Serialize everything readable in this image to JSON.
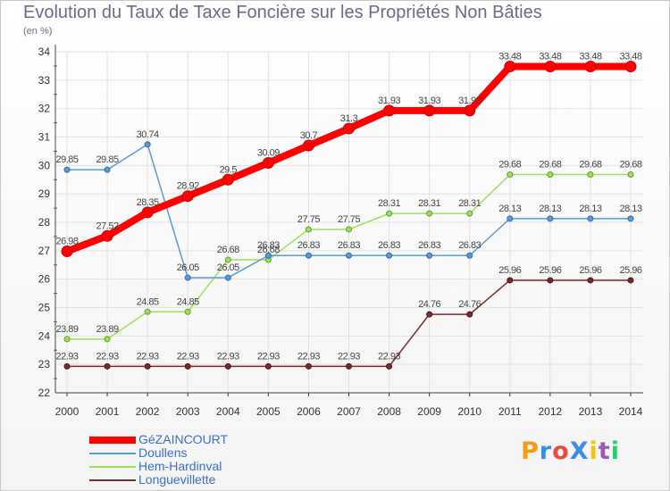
{
  "title": "Evolution du Taux de Taxe Foncière sur les Propriétés Non Bâties",
  "subtitle": "(en %)",
  "logo": {
    "text": "ProXiti",
    "letters": [
      "P",
      "r",
      "o",
      "X",
      "i",
      "t",
      "i"
    ],
    "colors": [
      "#f39c12",
      "#3a8ee6",
      "#e74c3c",
      "#3a8ee6",
      "#f1c40f",
      "#9b59b6",
      "#2ecc71"
    ]
  },
  "chart_data": {
    "type": "line",
    "x": [
      "2000",
      "2001",
      "2002",
      "2003",
      "2004",
      "2005",
      "2006",
      "2007",
      "2008",
      "2009",
      "2010",
      "2011",
      "2012",
      "2013",
      "2014"
    ],
    "yticks": [
      "22",
      "23",
      "24",
      "25",
      "26",
      "27",
      "28",
      "29",
      "30",
      "31",
      "32",
      "33",
      "34"
    ],
    "ylim": [
      22,
      34
    ],
    "grid": true,
    "legend_position": "bottom-left",
    "series": [
      {
        "name": "GéZAINCOURT",
        "color": "#ff0000",
        "width": 8,
        "marker_r": 6,
        "values": [
          26.98,
          27.52,
          28.35,
          28.92,
          29.5,
          30.09,
          30.7,
          31.3,
          31.93,
          31.93,
          31.93,
          33.48,
          33.48,
          33.48,
          33.48
        ],
        "labels": [
          "26.98",
          "27.52",
          "28.35",
          "28.92",
          "29.5",
          "30.09",
          "30.7",
          "31.3",
          "31.93",
          "31.93",
          "31.93",
          "33.48",
          "33.48",
          "33.48",
          "33.48"
        ]
      },
      {
        "name": "Doullens",
        "color": "#5a9bd4",
        "width": 1.5,
        "marker_r": 3,
        "values": [
          29.85,
          29.85,
          30.74,
          26.05,
          26.05,
          26.83,
          26.83,
          26.83,
          26.83,
          26.83,
          26.83,
          28.13,
          28.13,
          28.13,
          28.13
        ],
        "labels": [
          "29.85",
          "29.85",
          "30.74",
          "26.05",
          "26.05",
          "26.83",
          "26.83",
          "26.83",
          "26.83",
          "26.83",
          "26.83",
          "28.13",
          "28.13",
          "28.13",
          "28.13"
        ]
      },
      {
        "name": "Hem-Hardinval",
        "color": "#9ce05a",
        "width": 1.5,
        "marker_r": 3,
        "values": [
          23.89,
          23.89,
          24.85,
          24.85,
          26.68,
          26.68,
          27.75,
          27.75,
          28.31,
          28.31,
          28.31,
          29.68,
          29.68,
          29.68,
          29.68
        ],
        "labels": [
          "23.89",
          "23.89",
          "24.85",
          "24.85",
          "26.68",
          "26.68",
          "27.75",
          "27.75",
          "28.31",
          "28.31",
          "28.31",
          "29.68",
          "29.68",
          "29.68",
          "29.68"
        ]
      },
      {
        "name": "Longuevillette",
        "color": "#7a2a2a",
        "width": 1.5,
        "marker_r": 3,
        "values": [
          22.93,
          22.93,
          22.93,
          22.93,
          22.93,
          22.93,
          22.93,
          22.93,
          22.93,
          24.76,
          24.76,
          25.96,
          25.96,
          25.96,
          25.96
        ],
        "labels": [
          "22.93",
          "22.93",
          "22.93",
          "22.93",
          "22.93",
          "22.93",
          "22.93",
          "22.93",
          "22.93",
          "24.76",
          "24.76",
          "25.96",
          "25.96",
          "25.96",
          "25.96"
        ]
      }
    ]
  }
}
